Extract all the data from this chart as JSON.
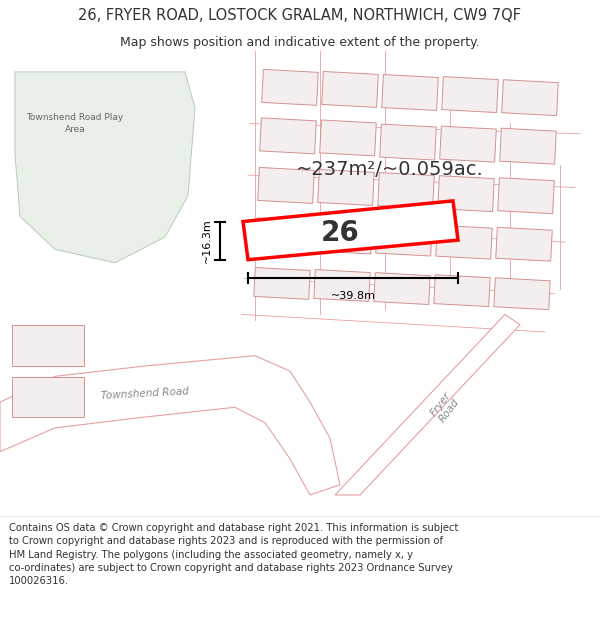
{
  "title": "26, FRYER ROAD, LOSTOCK GRALAM, NORTHWICH, CW9 7QF",
  "subtitle": "Map shows position and indicative extent of the property.",
  "footer": "Contains OS data © Crown copyright and database right 2021. This information is subject\nto Crown copyright and database rights 2023 and is reproduced with the permission of\nHM Land Registry. The polygons (including the associated geometry, namely x, y\nco-ordinates) are subject to Crown copyright and database rights 2023 Ordnance Survey\n100026316.",
  "area_label": "~237m²/~0.059ac.",
  "width_label": "~39.8m",
  "height_label": "~16.3m",
  "number_label": "26",
  "map_bg": "#ffffff",
  "green_area_color": "#e8f0e8",
  "green_area_border": "#b8ccb8",
  "road_fill": "#ffffff",
  "pink_line": "#e8a0a0",
  "highlight_color": "#ff0000",
  "text_color": "#333333",
  "road_label_color": "#888888",
  "title_fontsize": 10.5,
  "subtitle_fontsize": 9,
  "footer_fontsize": 7.2,
  "area_fontsize": 14,
  "number_fontsize": 20,
  "dim_fontsize": 8
}
